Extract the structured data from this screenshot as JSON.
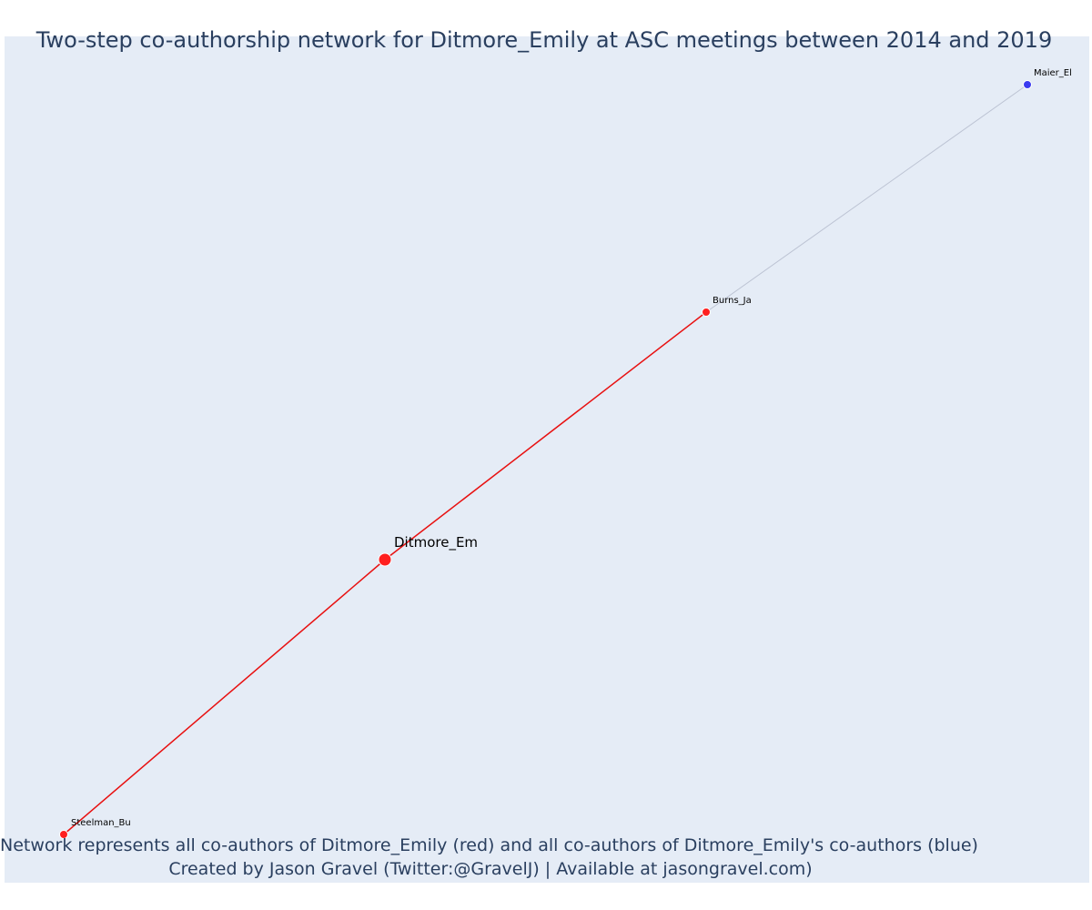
{
  "title": "Two-step co-authorship network for Ditmore_Emily at ASC meetings between 2014 and 2019",
  "footer": {
    "line1": "Network represents all co-authors of Ditmore_Emily (red) and all co-authors of Ditmore_Emily's co-authors (blue)",
    "line2": "Created by Jason Gravel (Twitter:@GravelJ) | Available at jasongravel.com)"
  },
  "colors": {
    "background": "#e5ecf6",
    "direct": "#ff1f1f",
    "direct_edge": "#e81010",
    "second_step": "#3a3af0",
    "second_edge": "#bcc3d3",
    "text": "#2a3f5f"
  },
  "chart_data": {
    "type": "network",
    "nodes": [
      {
        "id": "Ditmore_Em",
        "group": "focal"
      },
      {
        "id": "Burns_Ja",
        "group": "co-author"
      },
      {
        "id": "Steelman_Bu",
        "group": "co-author"
      },
      {
        "id": "Maier_El",
        "group": "co-author-of-co-author"
      }
    ],
    "edges": [
      {
        "source": "Steelman_Bu",
        "target": "Ditmore_Em",
        "group": "direct"
      },
      {
        "source": "Ditmore_Em",
        "target": "Burns_Ja",
        "group": "direct"
      },
      {
        "source": "Burns_Ja",
        "target": "Maier_El",
        "group": "second-step"
      }
    ]
  }
}
